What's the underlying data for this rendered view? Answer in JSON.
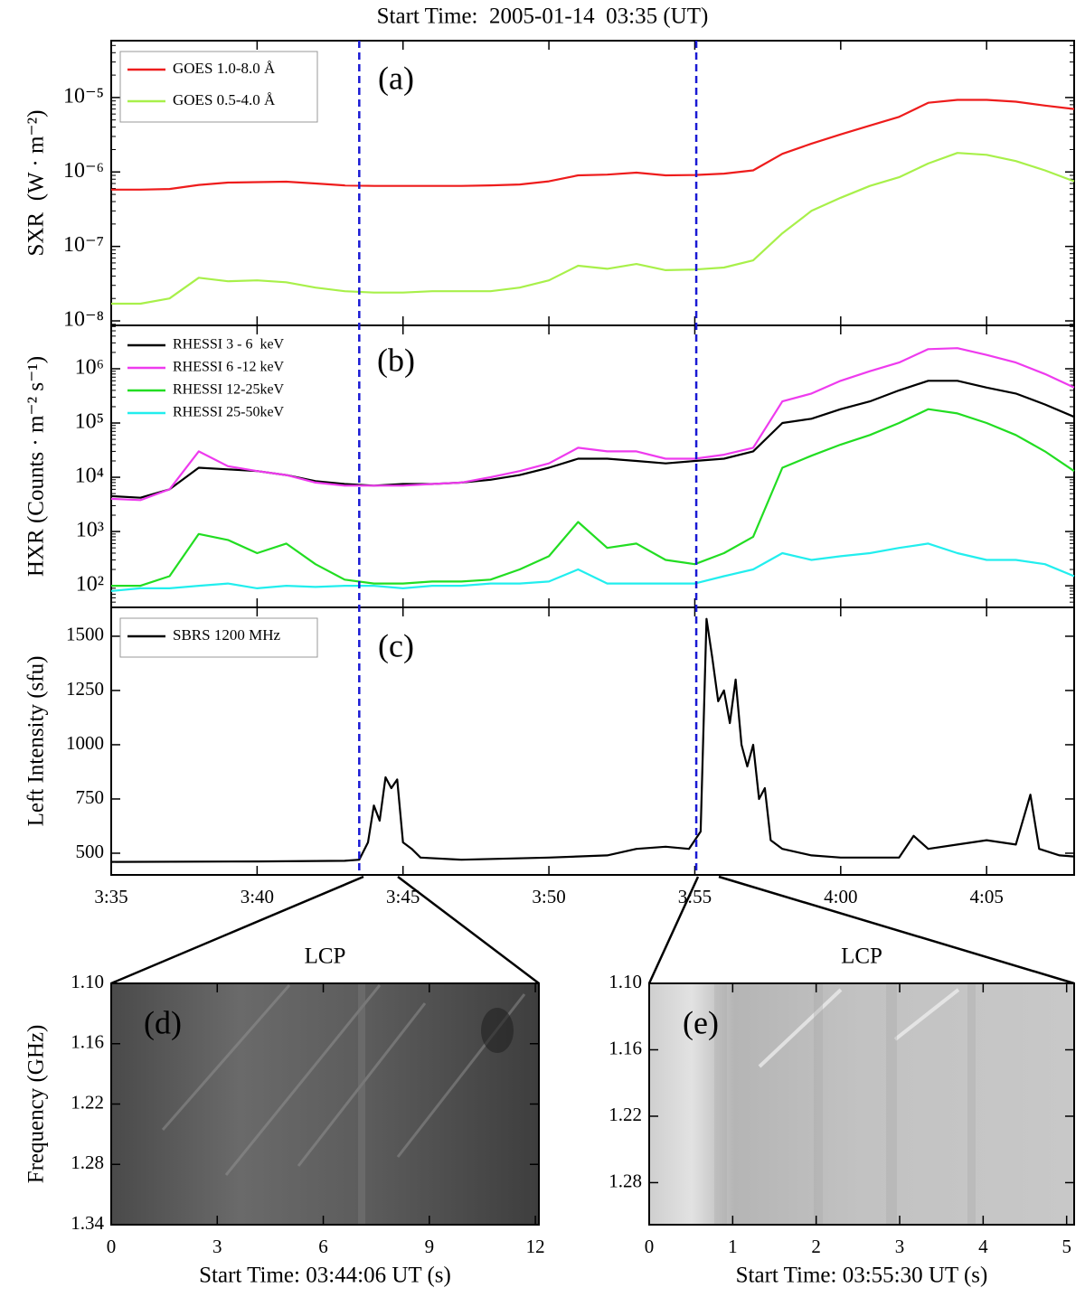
{
  "title": "Start Time:  2005-01-14  03:35 (UT)",
  "vlines": [
    223.5,
    235.05
  ],
  "vline_color": "#1a1ad4",
  "chart_data": [
    {
      "type": "line",
      "label": "(a)",
      "ylabel": "SXR  (W · m⁻²)",
      "log_y": true,
      "xlim": [
        215,
        248
      ],
      "ylim": [
        8.7e-09,
        5.8e-05
      ],
      "yticks": [
        {
          "value": 1e-08,
          "label": "10⁻⁸"
        },
        {
          "value": 1e-07,
          "label": "10⁻⁷"
        },
        {
          "value": 1e-06,
          "label": "10⁻⁶"
        },
        {
          "value": 1e-05,
          "label": "10⁻⁵"
        }
      ],
      "legend": "upper left",
      "legend_frame": true,
      "x": [
        215,
        216,
        217,
        218,
        219,
        220,
        221,
        222,
        223,
        224,
        225,
        226,
        227,
        228,
        229,
        230,
        231,
        232,
        233,
        234,
        235,
        236,
        237,
        238,
        239,
        240,
        241,
        242,
        243,
        244,
        245,
        246,
        247,
        248
      ],
      "series": [
        {
          "name": "GOES 1.0-8.0 Å",
          "color": "#ee1c1c",
          "values": [
            5.8e-07,
            5.8e-07,
            5.9e-07,
            6.7e-07,
            7.2e-07,
            7.3e-07,
            7.4e-07,
            7e-07,
            6.6e-07,
            6.5e-07,
            6.5e-07,
            6.5e-07,
            6.5e-07,
            6.6e-07,
            6.8e-07,
            7.5e-07,
            9e-07,
            9.2e-07,
            9.8e-07,
            9e-07,
            9.1e-07,
            9.5e-07,
            1.05e-06,
            1.75e-06,
            2.4e-06,
            3.2e-06,
            4.2e-06,
            5.5e-06,
            8.5e-06,
            9.3e-06,
            9.3e-06,
            8.8e-06,
            7.8e-06,
            7e-06
          ]
        },
        {
          "name": "GOES 0.5-4.0 Å",
          "color": "#a8f04a",
          "values": [
            1.7e-08,
            1.7e-08,
            2e-08,
            3.8e-08,
            3.4e-08,
            3.5e-08,
            3.3e-08,
            2.8e-08,
            2.5e-08,
            2.4e-08,
            2.4e-08,
            2.5e-08,
            2.5e-08,
            2.5e-08,
            2.8e-08,
            3.5e-08,
            5.5e-08,
            5e-08,
            5.8e-08,
            4.8e-08,
            4.9e-08,
            5.2e-08,
            6.5e-08,
            1.5e-07,
            3e-07,
            4.5e-07,
            6.5e-07,
            8.5e-07,
            1.3e-06,
            1.8e-06,
            1.7e-06,
            1.4e-06,
            1.05e-06,
            7.5e-07
          ]
        }
      ]
    },
    {
      "type": "line",
      "label": "(b)",
      "ylabel": "HXR (Counts · m⁻² s⁻¹)",
      "log_y": true,
      "xlim": [
        215,
        248
      ],
      "ylim": [
        40,
        6300000.0
      ],
      "yticks": [
        {
          "value": 100,
          "label": "10²"
        },
        {
          "value": 1000,
          "label": "10³"
        },
        {
          "value": 10000,
          "label": "10⁴"
        },
        {
          "value": 100000,
          "label": "10⁵"
        },
        {
          "value": 1000000,
          "label": "10⁶"
        }
      ],
      "legend": "upper left",
      "legend_frame": false,
      "x": [
        215,
        216,
        217,
        218,
        219,
        220,
        221,
        222,
        223,
        224,
        225,
        226,
        227,
        228,
        229,
        230,
        231,
        232,
        233,
        234,
        235,
        236,
        237,
        238,
        239,
        240,
        241,
        242,
        243,
        244,
        245,
        246,
        247,
        248
      ],
      "series": [
        {
          "name": "RHESSI 3 - 6  keV",
          "color": "#000000",
          "values": [
            4500.0,
            4200.0,
            6000.0,
            15000.0,
            14000.0,
            13000.0,
            11000.0,
            8500.0,
            7500.0,
            7000.0,
            7500.0,
            7500.0,
            8000.0,
            9000.0,
            11000.0,
            15000.0,
            22000.0,
            22000.0,
            20000.0,
            18000.0,
            20000.0,
            22000.0,
            30000.0,
            100000.0,
            120000.0,
            180000.0,
            250000.0,
            400000.0,
            600000.0,
            600000.0,
            450000.0,
            350000.0,
            220000.0,
            130000.0
          ]
        },
        {
          "name": "RHESSI 6 -12 keV",
          "color": "#ee3bee",
          "values": [
            4000.0,
            3800.0,
            6000.0,
            30000.0,
            16000.0,
            13000.0,
            11000.0,
            8000.0,
            7000.0,
            7000.0,
            7000.0,
            7500.0,
            8000.0,
            10000.0,
            13000.0,
            18000.0,
            35000.0,
            30000.0,
            30000.0,
            22000.0,
            22000.0,
            26000.0,
            35000.0,
            250000.0,
            350000.0,
            600000.0,
            900000.0,
            1300000.0,
            2300000.0,
            2400000.0,
            1800000.0,
            1300000.0,
            800000.0,
            450000.0
          ]
        },
        {
          "name": "RHESSI 12-25keV",
          "color": "#22dd22",
          "values": [
            100,
            100,
            150,
            900,
            700,
            400,
            600,
            250,
            130,
            110,
            110,
            120,
            120,
            130,
            200,
            350,
            1500,
            500,
            600,
            300,
            250,
            400,
            800,
            15000.0,
            25000.0,
            40000.0,
            60000.0,
            100000.0,
            180000.0,
            150000.0,
            100000.0,
            60000.0,
            30000.0,
            13000.0
          ]
        },
        {
          "name": "RHESSI 25-50keV",
          "color": "#22eeee",
          "values": [
            80,
            90,
            90,
            100,
            110,
            90,
            100,
            95,
            100,
            100,
            90,
            100,
            100,
            110,
            110,
            120,
            200,
            110,
            110,
            110,
            110,
            150,
            200,
            400,
            300,
            350,
            400,
            500,
            600,
            400,
            300,
            300,
            250,
            150
          ]
        }
      ]
    },
    {
      "type": "line",
      "label": "(c)",
      "ylabel": "Left Intensity (sfu)",
      "log_y": false,
      "xlim": [
        215,
        248
      ],
      "ylim": [
        400,
        1633
      ],
      "xticks": [
        {
          "value": 215,
          "label": "3:35"
        },
        {
          "value": 220,
          "label": "3:40"
        },
        {
          "value": 225,
          "label": "3:45"
        },
        {
          "value": 230,
          "label": "3:50"
        },
        {
          "value": 235,
          "label": "3:55"
        },
        {
          "value": 240,
          "label": "4:00"
        },
        {
          "value": 245,
          "label": "4:05"
        }
      ],
      "yticks": [
        500,
        750,
        1000,
        1250,
        1500
      ],
      "legend": "upper left",
      "legend_frame": true,
      "x": [
        215,
        220,
        223,
        223.5,
        223.8,
        224,
        224.2,
        224.4,
        224.6,
        224.8,
        225,
        225.3,
        225.6,
        227,
        230,
        232,
        233,
        234,
        234.8,
        235,
        235.2,
        235.4,
        235.6,
        235.8,
        236,
        236.2,
        236.4,
        236.6,
        236.8,
        237,
        237.2,
        237.4,
        237.6,
        238,
        239,
        240,
        242,
        242.5,
        243,
        244,
        245,
        246,
        246.5,
        246.8,
        247.5,
        248
      ],
      "series": [
        {
          "name": "SBRS 1200 MHz",
          "color": "#000000",
          "values": [
            460,
            462,
            465,
            470,
            550,
            720,
            650,
            850,
            800,
            840,
            550,
            520,
            480,
            470,
            480,
            490,
            520,
            530,
            520,
            560,
            600,
            1580,
            1400,
            1200,
            1250,
            1100,
            1300,
            1000,
            900,
            1000,
            750,
            800,
            560,
            520,
            490,
            480,
            480,
            580,
            520,
            540,
            560,
            540,
            770,
            520,
            490,
            485
          ]
        }
      ]
    },
    {
      "type": "spectrogram",
      "title": "LCP",
      "label": "(d)",
      "xlabel": "Start Time: 03:44:06 UT (s)",
      "ylabel": "Frequency (GHz)",
      "xlim": [
        0,
        12.1
      ],
      "xticks": [
        0,
        3,
        6,
        9,
        12
      ],
      "ylim": [
        1.34,
        1.1
      ],
      "yticks": [
        {
          "value": 1.1,
          "label": "1.10"
        },
        1.16,
        1.22,
        1.28,
        1.34
      ]
    },
    {
      "type": "spectrogram",
      "title": "LCP",
      "label": "(e)",
      "xlabel": "Start Time: 03:55:30 UT (s)",
      "xlim": [
        0,
        5.09
      ],
      "xticks": [
        0,
        1,
        2,
        3,
        4,
        5
      ],
      "ylim": [
        1.318,
        1.1
      ],
      "yticks": [
        {
          "value": 1.1,
          "label": "1.10"
        },
        1.16,
        1.22,
        1.28
      ]
    }
  ]
}
